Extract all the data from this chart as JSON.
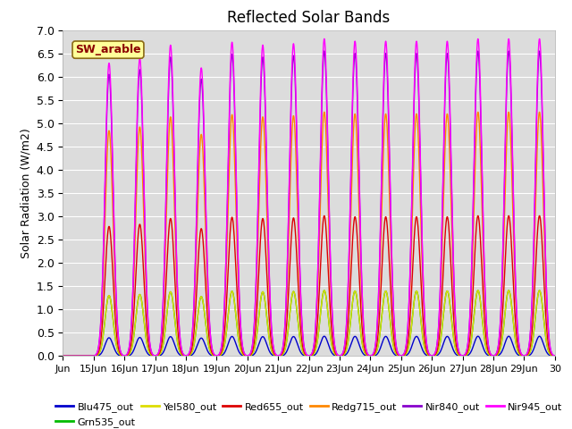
{
  "title": "Reflected Solar Bands",
  "ylabel": "Solar Radiation (W/m2)",
  "annotation": "SW_arable",
  "annotation_color": "#8B0000",
  "annotation_bg": "#FFFF99",
  "annotation_border": "#8B6914",
  "background_color": "#dcdcdc",
  "ylim": [
    0.0,
    7.0
  ],
  "yticks": [
    0.0,
    0.5,
    1.0,
    1.5,
    2.0,
    2.5,
    3.0,
    3.5,
    4.0,
    4.5,
    5.0,
    5.5,
    6.0,
    6.5,
    7.0
  ],
  "xstart": 14,
  "xend": 30,
  "series_names": [
    "Blu475_out",
    "Grn535_out",
    "Yel580_out",
    "Red655_out",
    "Redg715_out",
    "Nir840_out",
    "Nir945_out"
  ],
  "series_colors": [
    "#0000CC",
    "#00BB00",
    "#DDDD00",
    "#DD0000",
    "#FF8800",
    "#8800CC",
    "#FF00FF"
  ],
  "scales": [
    0.065,
    0.215,
    0.215,
    0.46,
    0.8,
    1.0,
    1.04
  ],
  "base_peaks": [
    6.05,
    6.15,
    6.42,
    5.95,
    6.48,
    6.42,
    6.45,
    6.55,
    6.5,
    6.5,
    6.5,
    6.5,
    6.55,
    6.55,
    6.55
  ],
  "sigma": 0.13,
  "line_width": 1.0,
  "title_fontsize": 12
}
